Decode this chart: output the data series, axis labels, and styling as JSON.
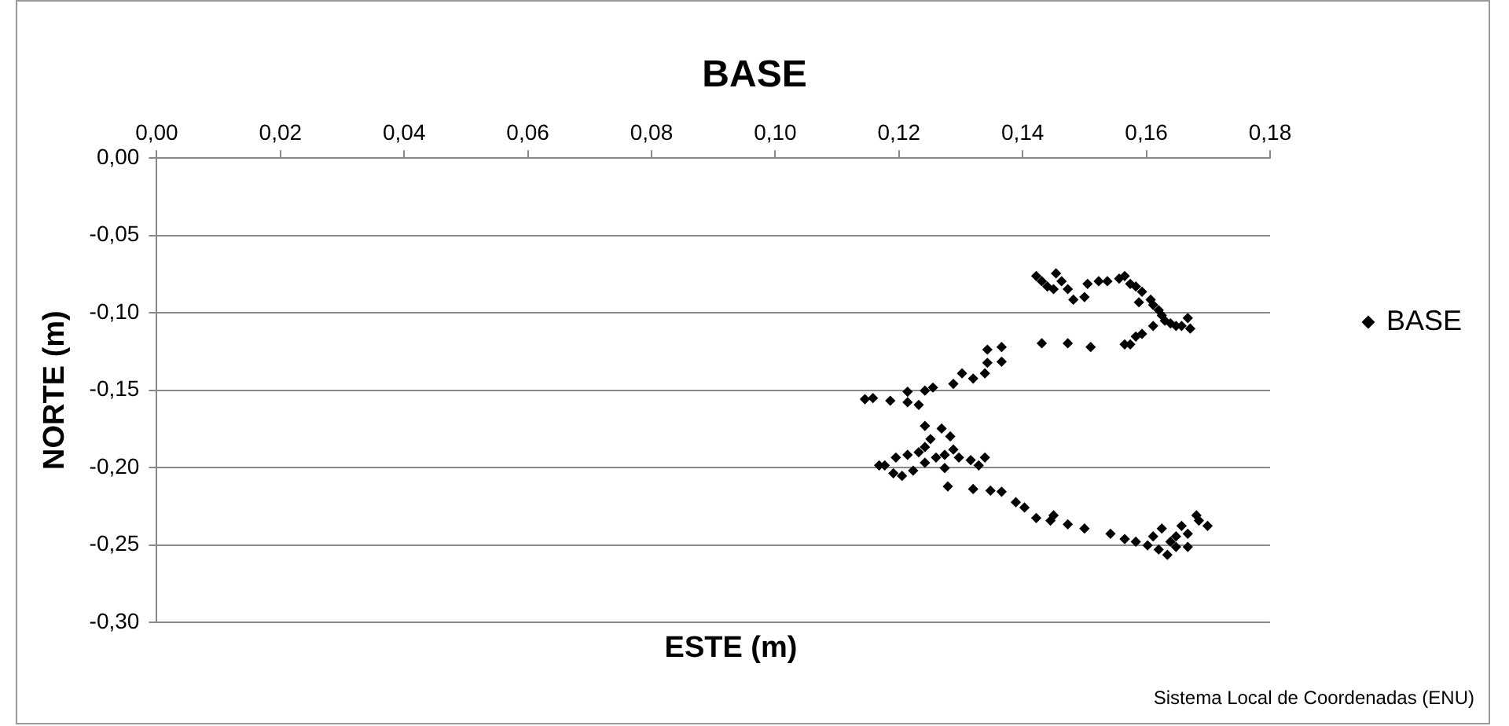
{
  "chart_data": {
    "type": "scatter",
    "title": "BASE",
    "xlabel": "ESTE (m)",
    "ylabel": "NORTE (m)",
    "annotations": [
      "Sistema Local de Coordenadas (ENU)"
    ],
    "xlim": [
      0,
      0.18
    ],
    "xticks": [
      {
        "value": 0,
        "label": "0,00"
      },
      {
        "value": 0.02,
        "label": "0,02"
      },
      {
        "value": 0.04,
        "label": "0,04"
      },
      {
        "value": 0.06,
        "label": "0,06"
      },
      {
        "value": 0.08,
        "label": "0,08"
      },
      {
        "value": 0.1,
        "label": "0,10"
      },
      {
        "value": 0.12,
        "label": "0,12"
      },
      {
        "value": 0.14,
        "label": "0,14"
      },
      {
        "value": 0.16,
        "label": "0,16"
      },
      {
        "value": 0.18,
        "label": "0,18"
      }
    ],
    "ylim": [
      -0.3,
      0
    ],
    "yticks": [
      {
        "value": 0,
        "label": "0,00"
      },
      {
        "value": -0.05,
        "label": "-0,05"
      },
      {
        "value": -0.1,
        "label": "-0,10"
      },
      {
        "value": -0.15,
        "label": "-0,15"
      },
      {
        "value": -0.2,
        "label": "-0,20"
      },
      {
        "value": -0.25,
        "label": "-0,25"
      },
      {
        "value": -0.3,
        "label": "-0,30"
      }
    ],
    "grid": "y",
    "legend": "right",
    "marker": "diamond",
    "series": [
      {
        "name": "BASE",
        "color": "#000000",
        "x": [
          0.1422,
          0.1431,
          0.144,
          0.1454,
          0.1463,
          0.145,
          0.1473,
          0.1482,
          0.15,
          0.1505,
          0.1523,
          0.1537,
          0.1556,
          0.1565,
          0.1574,
          0.1583,
          0.1593,
          0.1588,
          0.1607,
          0.1611,
          0.162,
          0.1625,
          0.163,
          0.1639,
          0.1648,
          0.1657,
          0.1667,
          0.1671,
          0.1611,
          0.1593,
          0.1583,
          0.1574,
          0.1565,
          0.151,
          0.1473,
          0.1431,
          0.1366,
          0.1343,
          0.1366,
          0.1343,
          0.1339,
          0.132,
          0.1302,
          0.1288,
          0.1255,
          0.1242,
          0.1214,
          0.1214,
          0.1232,
          0.1186,
          0.1158,
          0.1145,
          0.1242,
          0.1269,
          0.1283,
          0.1251,
          0.1242,
          0.1232,
          0.1214,
          0.1195,
          0.1177,
          0.1168,
          0.1191,
          0.1205,
          0.1223,
          0.1242,
          0.126,
          0.1274,
          0.1288,
          0.1297,
          0.1316,
          0.1339,
          0.1329,
          0.1274,
          0.1279,
          0.132,
          0.1348,
          0.1366,
          0.1389,
          0.1403,
          0.1422,
          0.145,
          0.1445,
          0.1473,
          0.15,
          0.1542,
          0.1565,
          0.1583,
          0.1602,
          0.162,
          0.1634,
          0.1639,
          0.1625,
          0.1648,
          0.1657,
          0.1667,
          0.1681,
          0.1685,
          0.1699,
          0.1667,
          0.1648,
          0.1611
        ],
        "values": [
          -0.0762,
          -0.0796,
          -0.083,
          -0.0745,
          -0.0796,
          -0.0847,
          -0.0847,
          -0.0915,
          -0.0898,
          -0.0813,
          -0.0796,
          -0.0796,
          -0.0779,
          -0.0762,
          -0.0813,
          -0.083,
          -0.0864,
          -0.0932,
          -0.0915,
          -0.0949,
          -0.0983,
          -0.1017,
          -0.1051,
          -0.1068,
          -0.1085,
          -0.1085,
          -0.1034,
          -0.1102,
          -0.1085,
          -0.1136,
          -0.1153,
          -0.1204,
          -0.1204,
          -0.1221,
          -0.1197,
          -0.1197,
          -0.1221,
          -0.1238,
          -0.1316,
          -0.1323,
          -0.1391,
          -0.1425,
          -0.1391,
          -0.1459,
          -0.1483,
          -0.1503,
          -0.151,
          -0.1578,
          -0.1595,
          -0.1568,
          -0.1551,
          -0.1558,
          -0.1731,
          -0.1748,
          -0.1799,
          -0.1816,
          -0.1867,
          -0.1901,
          -0.1918,
          -0.1935,
          -0.1986,
          -0.1986,
          -0.2037,
          -0.2054,
          -0.202,
          -0.1969,
          -0.1935,
          -0.1918,
          -0.1884,
          -0.1935,
          -0.1952,
          -0.1935,
          -0.1986,
          -0.2003,
          -0.2122,
          -0.2139,
          -0.2149,
          -0.2156,
          -0.2224,
          -0.2258,
          -0.2326,
          -0.2309,
          -0.2343,
          -0.2367,
          -0.2394,
          -0.2428,
          -0.2462,
          -0.2479,
          -0.2503,
          -0.253,
          -0.2564,
          -0.2479,
          -0.2394,
          -0.2445,
          -0.2377,
          -0.2428,
          -0.2309,
          -0.2343,
          -0.2377,
          -0.2513,
          -0.2513,
          -0.2445
        ]
      }
    ]
  }
}
